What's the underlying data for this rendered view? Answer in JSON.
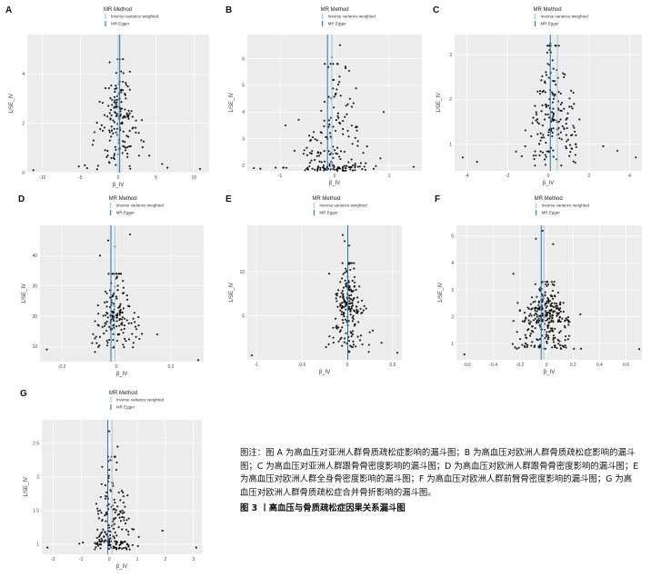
{
  "legend": {
    "title": "MR Method",
    "items": [
      "Inverse variance weighted",
      "MR Egger"
    ]
  },
  "axes": {
    "xlabel": "β_IV",
    "ylabel": "1/SE_IV"
  },
  "colors": {
    "ivw": "#a6cbe2",
    "egger": "#2c73a6",
    "point": "#111111",
    "panel": "#ececec"
  },
  "caption": {
    "note": "图注：图 A 为高血压对亚洲人群骨质疏松症影响的漏斗图；B 为高血压对欧洲人群骨质疏松症影响的漏斗图；C 为高血压对亚洲人群跟骨骨密度影响的漏斗图；D 为高血压对欧洲人群跟骨骨密度影响的漏斗图；E 为高血压对欧洲人群全身骨密度影响的漏斗图；F 为高血压对欧洲人群前臂骨密度影响的漏斗图；G 为高血压对欧洲人群骨质疏松症合并骨折影响的漏斗图。",
    "figure": "图 3 丨高血压与骨质疏松症因果关系漏斗图"
  },
  "chart_data": [
    {
      "panel": "A",
      "type": "scatter",
      "xlabel": "β_IV",
      "ylabel": "1/SE_IV",
      "xlim": [
        -12,
        12
      ],
      "ylim": [
        0,
        5.6
      ],
      "xticks": [
        -10,
        -5,
        0,
        5,
        10
      ],
      "yticks": [
        0,
        2,
        4
      ],
      "ivw": 0.0,
      "egger": 0.2,
      "n_points": 170,
      "seed": 11,
      "x_center": 0.1,
      "x_spread": 3.0,
      "y_min": 0.1,
      "y_mode": 1.7,
      "y_max": 4.6,
      "extra_points": [
        [
          -11.2,
          0.1
        ],
        [
          10.8,
          0.15
        ],
        [
          5.8,
          0.35
        ],
        [
          -5.2,
          0.25
        ],
        [
          -4.4,
          0.3
        ],
        [
          6.5,
          0.2
        ],
        [
          0.2,
          4.6
        ],
        [
          0.4,
          4.1
        ]
      ]
    },
    {
      "panel": "B",
      "type": "scatter",
      "xlabel": "β_IV",
      "ylabel": "1/SE_IV",
      "xlim": [
        -1.6,
        1.6
      ],
      "ylim": [
        1.8,
        6.9
      ],
      "xticks": [
        -1,
        0,
        1
      ],
      "yticks": [
        2,
        3,
        4,
        5,
        6
      ],
      "ivw": -0.05,
      "egger": -0.13,
      "n_points": 200,
      "seed": 23,
      "x_center": 0.0,
      "x_spread": 0.6,
      "y_min": 1.8,
      "y_mode": 2.0,
      "y_max": 5.8,
      "extra_points": [
        [
          -1.48,
          1.9
        ],
        [
          1.45,
          1.95
        ],
        [
          0.1,
          6.5
        ],
        [
          -0.05,
          6.05
        ],
        [
          0.2,
          5.7
        ],
        [
          0.9,
          4.0
        ],
        [
          -0.9,
          3.5
        ]
      ]
    },
    {
      "panel": "C",
      "type": "scatter",
      "xlabel": "β_IV",
      "ylabel": "1/SE_IV",
      "xlim": [
        -4.6,
        4.6
      ],
      "ylim": [
        0.4,
        3.45
      ],
      "xticks": [
        -4,
        -2,
        0,
        2,
        4
      ],
      "yticks": [
        1,
        2,
        3
      ],
      "ivw": 0.45,
      "egger": 0.1,
      "n_points": 190,
      "seed": 37,
      "x_center": 0.2,
      "x_spread": 1.3,
      "y_min": 0.5,
      "y_mode": 1.3,
      "y_max": 3.2,
      "extra_points": [
        [
          -4.2,
          0.7
        ],
        [
          4.3,
          0.7
        ],
        [
          0.1,
          3.25
        ],
        [
          -3.5,
          0.6
        ],
        [
          3.4,
          0.85
        ],
        [
          2.7,
          0.95
        ]
      ]
    },
    {
      "panel": "D",
      "type": "scatter",
      "xlabel": "β_IV",
      "ylabel": "1/SE_IV",
      "xlim": [
        -0.28,
        0.32
      ],
      "ylim": [
        5,
        50
      ],
      "xticks": [
        -0.2,
        0.0,
        0.2
      ],
      "yticks": [
        10,
        20,
        30,
        40
      ],
      "ivw": -0.005,
      "egger": -0.02,
      "n_points": 160,
      "seed": 51,
      "x_center": 0.0,
      "x_spread": 0.085,
      "y_min": 8,
      "y_mode": 17,
      "y_max": 34,
      "extra_points": [
        [
          -0.255,
          9
        ],
        [
          0.3,
          5.5
        ],
        [
          -0.03,
          45
        ],
        [
          -0.005,
          43
        ],
        [
          0.05,
          47
        ],
        [
          -0.06,
          40
        ],
        [
          0.15,
          14
        ]
      ]
    },
    {
      "panel": "E",
      "type": "scatter",
      "xlabel": "β_IV",
      "ylabel": "1/SE_IV",
      "xlim": [
        -1.1,
        0.6
      ],
      "ylim": [
        0,
        15.3
      ],
      "xticks": [
        -1.0,
        -0.5,
        0.0,
        0.5
      ],
      "yticks": [
        5,
        10
      ],
      "ivw": 0.005,
      "egger": 0.005,
      "n_points": 200,
      "seed": 67,
      "x_center": 0.0,
      "x_spread": 0.19,
      "y_min": 0.8,
      "y_mode": 5.5,
      "y_max": 11,
      "extra_points": [
        [
          -1.05,
          0.5
        ],
        [
          0.55,
          0.8
        ],
        [
          -0.05,
          14.2
        ],
        [
          -0.03,
          13.5
        ],
        [
          0.02,
          13.0
        ],
        [
          -0.2,
          9.8
        ]
      ]
    },
    {
      "panel": "F",
      "type": "scatter",
      "xlabel": "β_IV",
      "ylabel": "1/SE_IV",
      "xlim": [
        -0.68,
        0.72
      ],
      "ylim": [
        0.4,
        5.4
      ],
      "xticks": [
        -0.6,
        -0.4,
        -0.2,
        0.0,
        0.2,
        0.4,
        0.6
      ],
      "yticks": [
        1,
        2,
        3,
        4,
        5
      ],
      "ivw": -0.02,
      "egger": -0.04,
      "n_points": 300,
      "seed": 83,
      "x_center": 0.0,
      "x_spread": 0.22,
      "y_min": 0.8,
      "y_mode": 1.8,
      "y_max": 3.3,
      "extra_points": [
        [
          -0.62,
          0.6
        ],
        [
          0.7,
          0.8
        ],
        [
          -0.03,
          5.2
        ],
        [
          -0.08,
          4.9
        ],
        [
          0.05,
          4.7
        ],
        [
          -0.25,
          3.6
        ]
      ]
    },
    {
      "panel": "G",
      "type": "scatter",
      "xlabel": "β_IV",
      "ylabel": "1/SE_IV",
      "xlim": [
        -2.4,
        3.3
      ],
      "ylim": [
        0.85,
        2.85
      ],
      "xticks": [
        -2,
        -1,
        0,
        1,
        2,
        3
      ],
      "yticks": [
        1.0,
        1.5,
        2.0,
        2.5
      ],
      "ivw": 0.1,
      "egger": -0.05,
      "n_points": 190,
      "seed": 97,
      "x_center": 0.1,
      "x_spread": 0.75,
      "y_min": 0.92,
      "y_mode": 1.05,
      "y_max": 2.3,
      "extra_points": [
        [
          -2.2,
          0.95
        ],
        [
          3.1,
          0.95
        ],
        [
          0.0,
          2.68
        ],
        [
          0.3,
          2.45
        ],
        [
          -0.25,
          2.15
        ],
        [
          1.9,
          1.2
        ]
      ]
    }
  ]
}
